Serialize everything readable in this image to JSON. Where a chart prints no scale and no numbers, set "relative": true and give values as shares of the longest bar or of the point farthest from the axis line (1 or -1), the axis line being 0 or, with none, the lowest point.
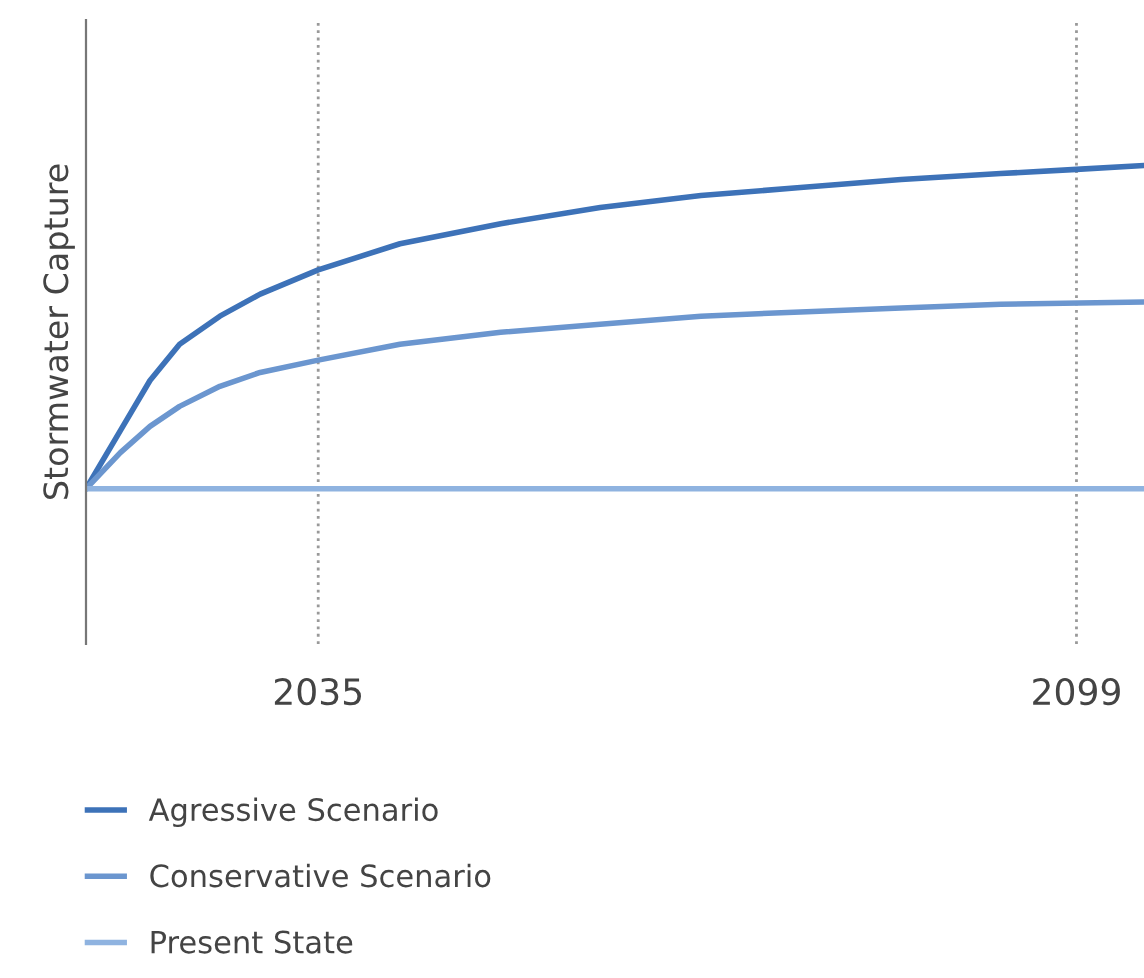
{
  "chart_data": {
    "type": "line",
    "relative": true,
    "ylabel": "Stormwater Capture",
    "xlim": [
      2015.4,
      2104.7
    ],
    "xticks": [
      2035,
      2099
    ],
    "grid": "x",
    "legend": "bottom",
    "tick_labels": "x",
    "series": [
      {
        "name": "Agressive Scenario",
        "color": "#3d72b8",
        "x": [
          2015.4,
          2018.3,
          2020.8,
          2023.3,
          2026.7,
          2030.1,
          2035,
          2041.9,
          2050.4,
          2058.8,
          2067.3,
          2075.7,
          2084.2,
          2092.6,
          2099,
          2104.7
        ],
        "values": [
          0,
          0.18,
          0.335,
          0.447,
          0.534,
          0.602,
          0.677,
          0.758,
          0.82,
          0.87,
          0.907,
          0.932,
          0.957,
          0.975,
          0.988,
          1
        ]
      },
      {
        "name": "Conservative Scenario",
        "color": "#6b96cf",
        "x": [
          2015.4,
          2018.3,
          2020.8,
          2023.3,
          2026.7,
          2030.1,
          2035,
          2041.9,
          2050.4,
          2058.8,
          2067.3,
          2075.7,
          2084.2,
          2092.6,
          2104.7
        ],
        "values": [
          0,
          0.112,
          0.193,
          0.255,
          0.317,
          0.36,
          0.398,
          0.447,
          0.484,
          0.509,
          0.534,
          0.547,
          0.559,
          0.571,
          0.578
        ]
      },
      {
        "name": "Present State",
        "color": "#8fb3e0",
        "x": [
          2015.4,
          2104.7
        ],
        "values": [
          0,
          0
        ]
      }
    ]
  }
}
